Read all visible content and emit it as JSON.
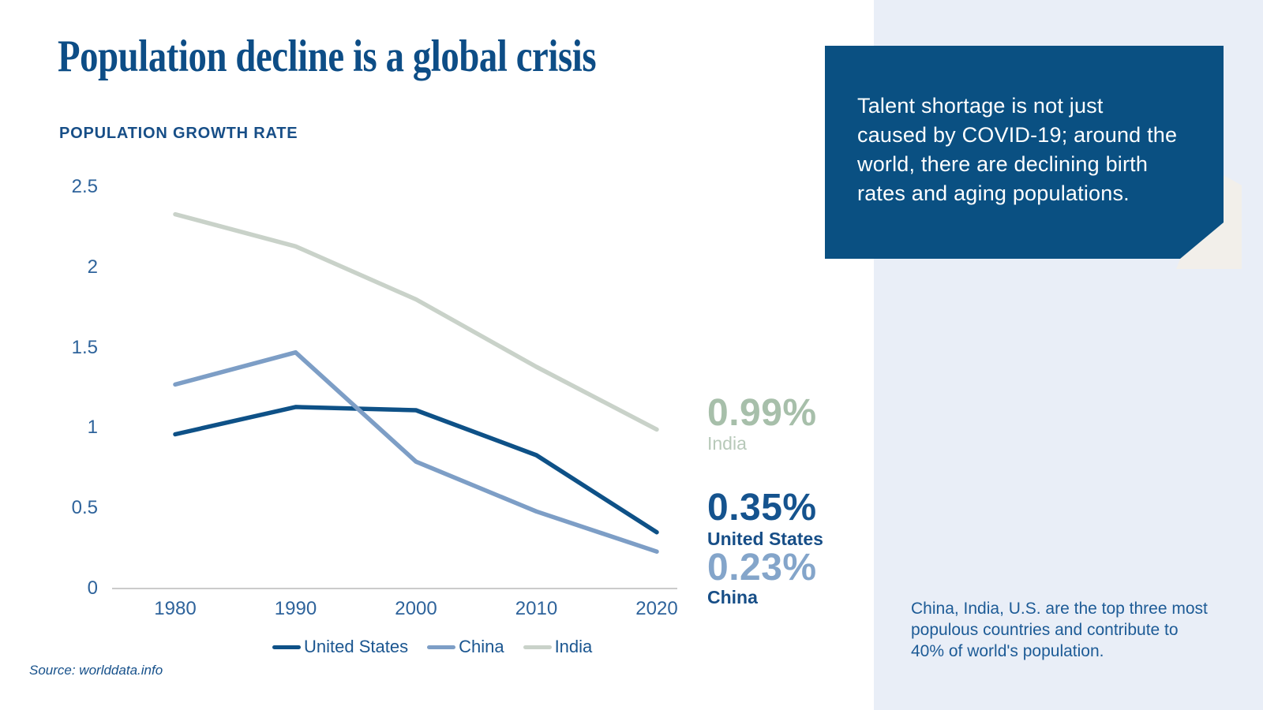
{
  "title": "Population decline is a global crisis",
  "chart_heading": "POPULATION GROWTH RATE",
  "chart_data": {
    "type": "line",
    "title": "POPULATION GROWTH RATE",
    "x": [
      1980,
      1990,
      2000,
      2010,
      2020
    ],
    "x_ticks": [
      "1980",
      "1990",
      "2000",
      "2010",
      "2020"
    ],
    "y_ticks": [
      0,
      0.5,
      1,
      1.5,
      2,
      2.5
    ],
    "ylim": [
      0,
      2.5
    ],
    "grid": false,
    "legend_position": "bottom",
    "series": [
      {
        "name": "United States",
        "values": [
          0.96,
          1.13,
          1.11,
          0.83,
          0.35
        ],
        "color": "#0e5187"
      },
      {
        "name": "China",
        "values": [
          1.27,
          1.47,
          0.79,
          0.48,
          0.23
        ],
        "color": "#7d9ec6"
      },
      {
        "name": "India",
        "values": [
          2.33,
          2.13,
          1.8,
          1.38,
          0.99
        ],
        "color": "#c9d2c9"
      }
    ],
    "axis_line_color": "#cbcbcb"
  },
  "end_labels": {
    "india": {
      "value": "0.99%",
      "name": "India"
    },
    "us": {
      "value": "0.35%",
      "name": "United States"
    },
    "china": {
      "value": "0.23%",
      "name": "China"
    }
  },
  "callout": {
    "text": "Talent shortage is not just caused by COVID-19; around the world, there are declining birth rates and aging populations.",
    "lines": [
      "Talent shortage is not just",
      "caused by COVID-19; around the",
      "world, there are declining birth",
      "rates and aging populations."
    ],
    "bg_color": "#0a5082",
    "text_color": "#ffffff"
  },
  "note": {
    "text": "China, India, U.S. are the top three most populous countries and contribute to 40% of world's population.",
    "lines": [
      "China, India, U.S. are the top three most",
      "populous countries and contribute to",
      "40% of world's population."
    ]
  },
  "source": "Source: worlddata.info",
  "colors": {
    "title_navy": "#0d4d86",
    "panel": "#e9eef7",
    "beige_accent": "#f2efea",
    "axis_label_blue": "#2e639b",
    "legend_text": "#1b5690",
    "india_pct": "#a7bfaa",
    "us_pct": "#15538e",
    "china_pct": "#84a5ca"
  }
}
